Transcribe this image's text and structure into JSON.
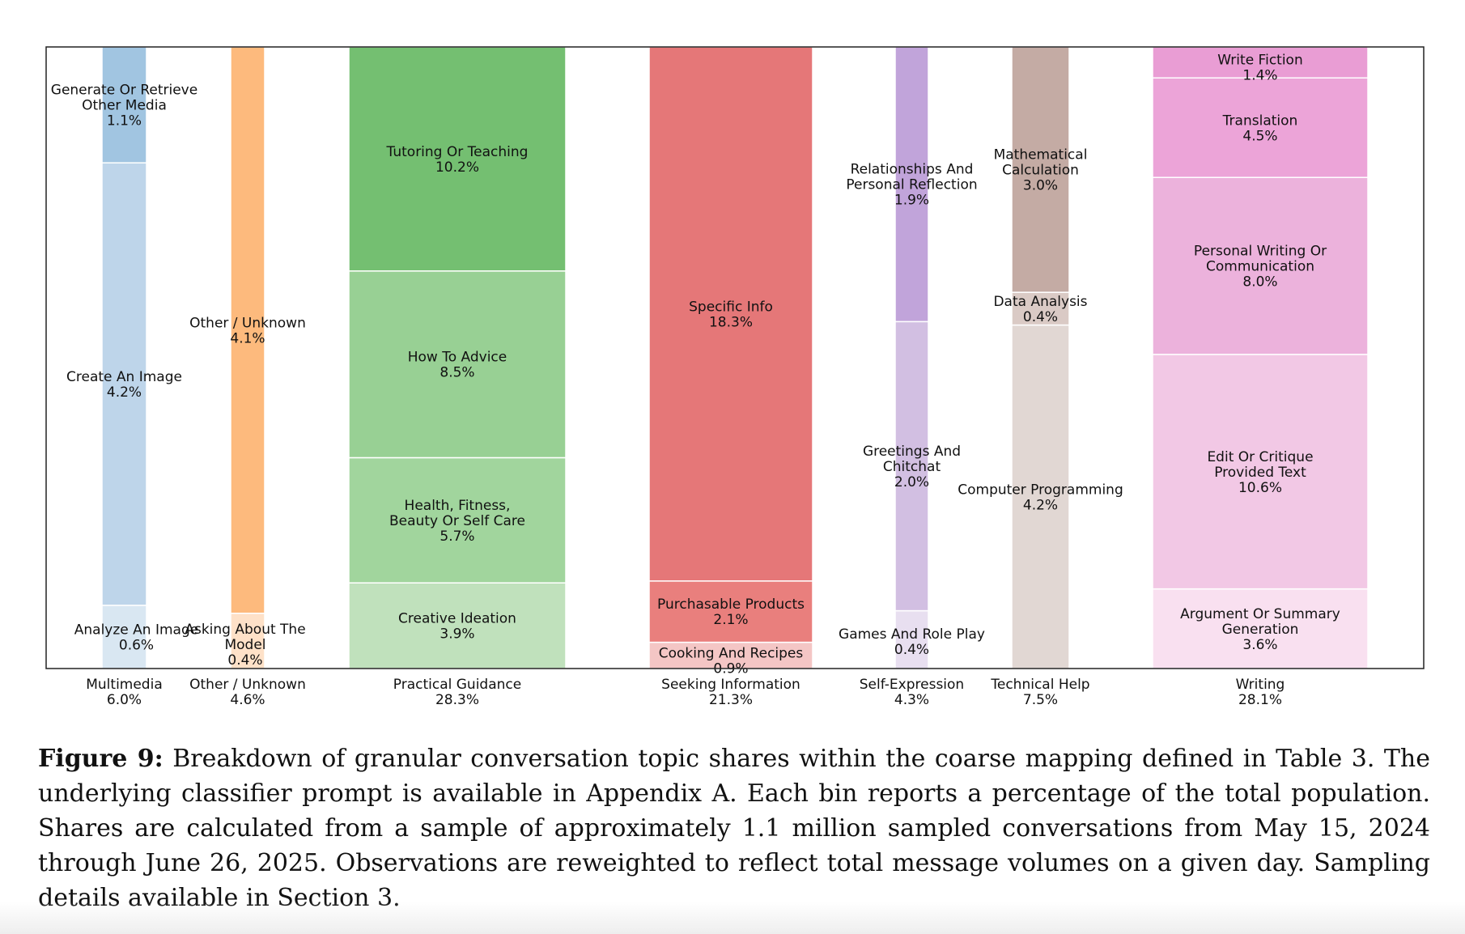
{
  "chart_data": {
    "type": "bar",
    "subtype": "stacked-marimekko",
    "title": "",
    "xlabel": "",
    "ylabel": "",
    "ylim": [
      0,
      1
    ],
    "grid": false,
    "groups": [
      {
        "name": "Multimedia",
        "total": "6.0%",
        "share": 6.0,
        "segments": [
          {
            "label": "Analyze An Image",
            "pct": "0.6%",
            "value": 0.6,
            "color": "#d9e7f2"
          },
          {
            "label": "Create An Image",
            "pct": "4.2%",
            "value": 4.2,
            "color": "#bed5ea"
          },
          {
            "label": "Generate Or Retrieve\nOther Media",
            "pct": "1.1%",
            "value": 1.1,
            "color": "#a1c5e1"
          }
        ]
      },
      {
        "name": "Other / Unknown",
        "total": "4.6%",
        "share": 4.6,
        "segments": [
          {
            "label": "Asking About The\nModel",
            "pct": "0.4%",
            "value": 0.4,
            "color": "#fee1c8"
          },
          {
            "label": "Other / Unknown",
            "pct": "4.1%",
            "value": 4.1,
            "color": "#fdba7d"
          }
        ]
      },
      {
        "name": "Practical Guidance",
        "total": "28.3%",
        "share": 28.3,
        "segments": [
          {
            "label": "Creative Ideation",
            "pct": "3.9%",
            "value": 3.9,
            "color": "#c0e1bc"
          },
          {
            "label": "Health, Fitness,\nBeauty Or Self Care",
            "pct": "5.7%",
            "value": 5.7,
            "color": "#a1d59d"
          },
          {
            "label": "How To Advice",
            "pct": "8.5%",
            "value": 8.5,
            "color": "#98d094"
          },
          {
            "label": "Tutoring Or Teaching",
            "pct": "10.2%",
            "value": 10.2,
            "color": "#74bf71"
          }
        ]
      },
      {
        "name": "Seeking Information",
        "total": "21.3%",
        "share": 21.3,
        "segments": [
          {
            "label": "Cooking And Recipes",
            "pct": "0.9%",
            "value": 0.9,
            "color": "#f4c6c5"
          },
          {
            "label": "Purchasable Products",
            "pct": "2.1%",
            "value": 2.1,
            "color": "#e97f7d"
          },
          {
            "label": "Specific Info",
            "pct": "18.3%",
            "value": 18.3,
            "color": "#e57778"
          }
        ]
      },
      {
        "name": "Self-Expression",
        "total": "4.3%",
        "share": 4.3,
        "segments": [
          {
            "label": "Games And Role Play",
            "pct": "0.4%",
            "value": 0.4,
            "color": "#e8dff0"
          },
          {
            "label": "Greetings And\nChitchat",
            "pct": "2.0%",
            "value": 2.0,
            "color": "#d2bfe2"
          },
          {
            "label": "Relationships And\nPersonal Reflection",
            "pct": "1.9%",
            "value": 1.9,
            "color": "#c1a4da"
          }
        ]
      },
      {
        "name": "Technical Help",
        "total": "7.5%",
        "share": 7.5,
        "segments": [
          {
            "label": "Computer Programming",
            "pct": "4.2%",
            "value": 4.2,
            "color": "#e1d7d3"
          },
          {
            "label": "Data Analysis",
            "pct": "0.4%",
            "value": 0.4,
            "color": "#dacac5"
          },
          {
            "label": "Mathematical\nCalculation",
            "pct": "3.0%",
            "value": 3.0,
            "color": "#c4aba4"
          }
        ]
      },
      {
        "name": "Writing",
        "total": "28.1%",
        "share": 28.1,
        "segments": [
          {
            "label": "Argument Or Summary\nGeneration",
            "pct": "3.6%",
            "value": 3.6,
            "color": "#f9e0f0"
          },
          {
            "label": "Edit Or Critique\nProvided Text",
            "pct": "10.6%",
            "value": 10.6,
            "color": "#f2c8e5"
          },
          {
            "label": "Personal Writing Or\nCommunication",
            "pct": "8.0%",
            "value": 8.0,
            "color": "#ecb2dc"
          },
          {
            "label": "Translation",
            "pct": "4.5%",
            "value": 4.5,
            "color": "#eca4d8"
          },
          {
            "label": "Write Fiction",
            "pct": "1.4%",
            "value": 1.4,
            "color": "#e99dd4"
          }
        ]
      }
    ]
  },
  "caption": {
    "label": "Figure 9:",
    "text": "Breakdown of granular conversation topic shares within the coarse mapping defined in Table 3. The underlying classifier prompt is available in Appendix A. Each bin reports a percentage of the total population. Shares are calculated from a sample of approximately 1.1 million sampled conversations from May 15, 2024 through June 26, 2025. Observations are reweighted to reflect total message volumes on a given day. Sampling details available in Section 3."
  }
}
